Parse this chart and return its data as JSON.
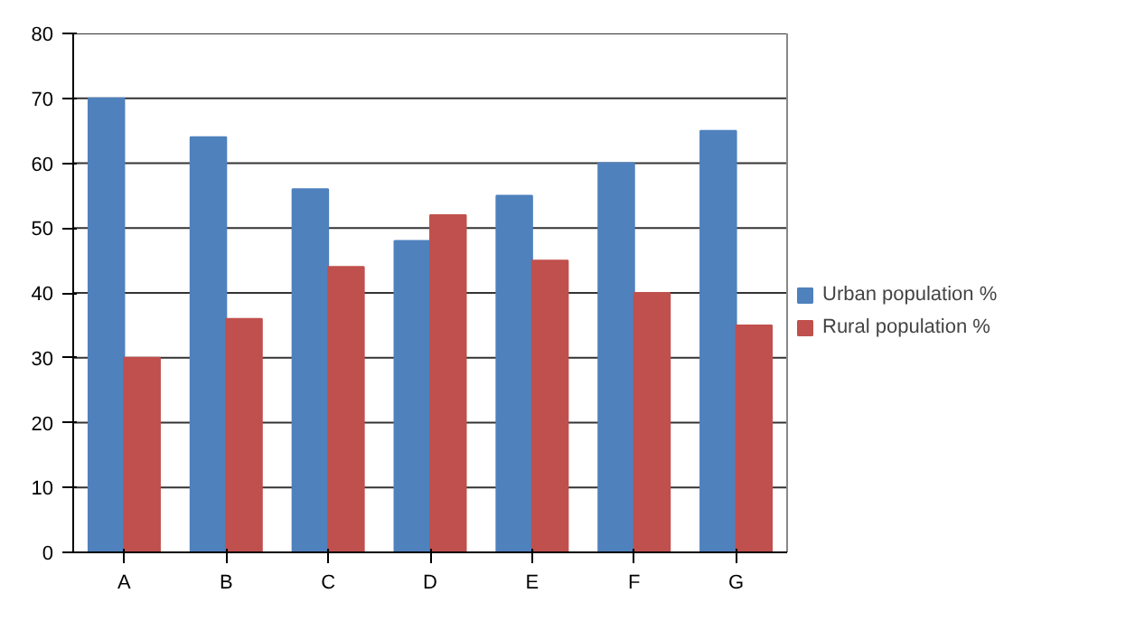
{
  "chart_data": {
    "type": "bar",
    "categories": [
      "A",
      "B",
      "C",
      "D",
      "E",
      "F",
      "G"
    ],
    "series": [
      {
        "name": "Urban population %",
        "color": "#4f81bd",
        "values": [
          70,
          64,
          56,
          48,
          55,
          60,
          65
        ]
      },
      {
        "name": "Rural population %",
        "color": "#c0504d",
        "values": [
          30,
          36,
          44,
          52,
          45,
          40,
          35
        ]
      }
    ],
    "ylim": [
      0,
      80
    ],
    "yticks": [
      0,
      10,
      20,
      30,
      40,
      50,
      60,
      70,
      80
    ],
    "grid": "y",
    "legend": "right"
  }
}
